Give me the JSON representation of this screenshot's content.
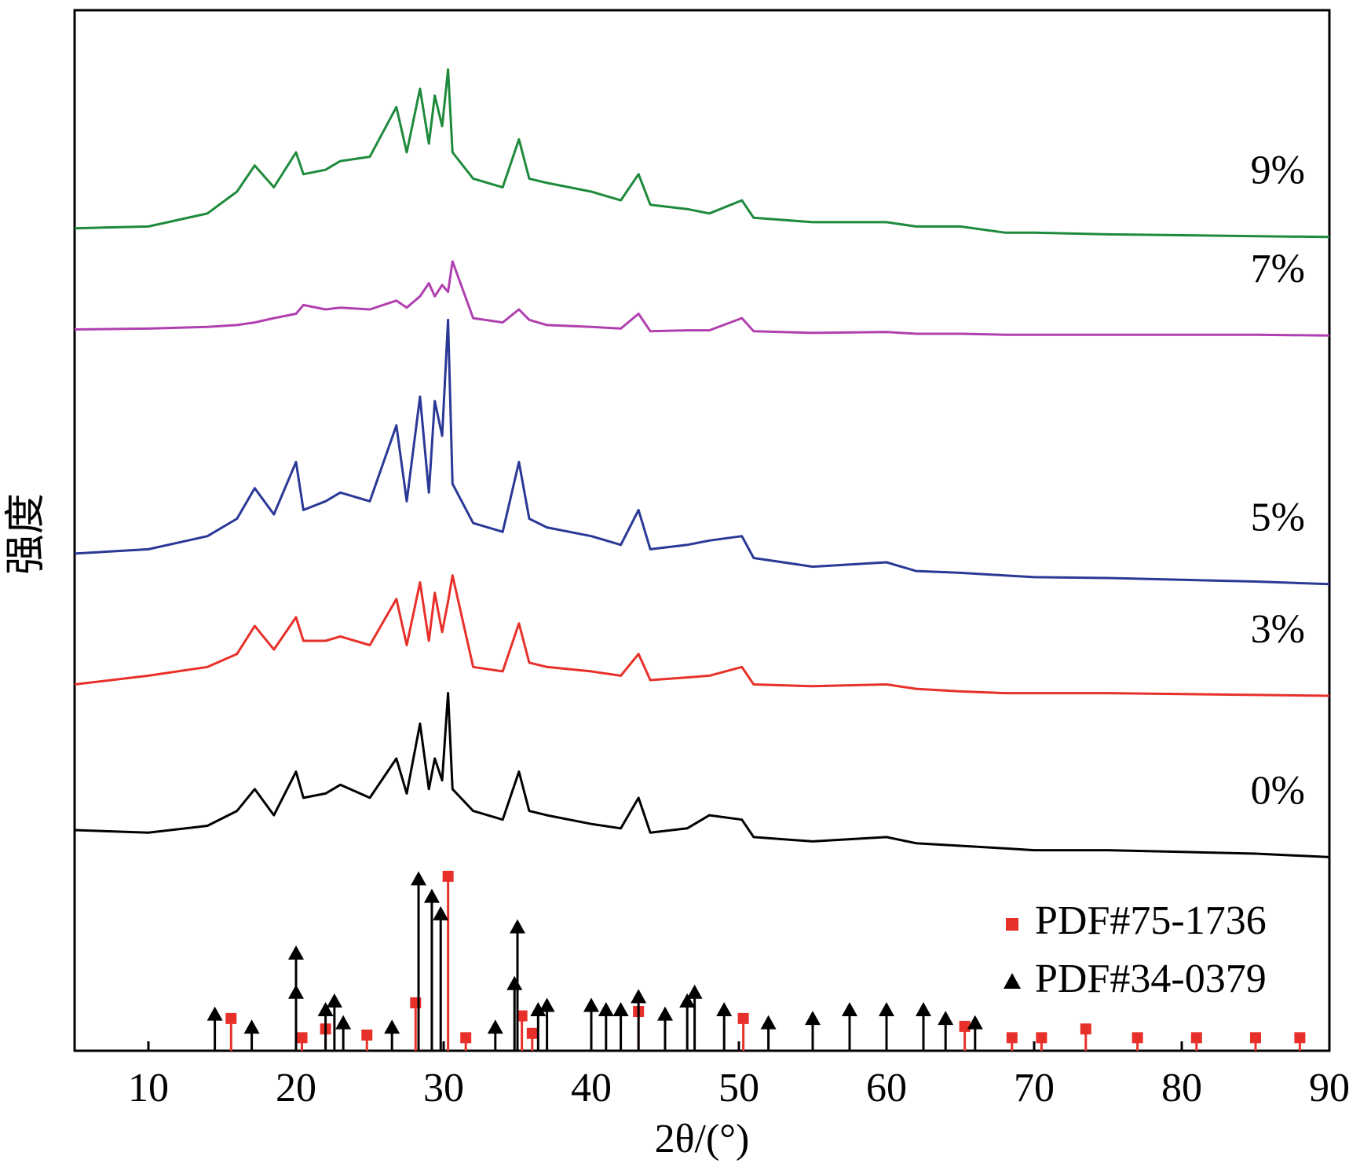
{
  "chart_data": {
    "type": "line",
    "x_label": "2θ/(°)",
    "y_label": "强度",
    "xlim": [
      5,
      90
    ],
    "xticks": [
      10,
      20,
      30,
      40,
      50,
      60,
      70,
      80,
      90
    ],
    "ylim": [
      0,
      1193
    ],
    "x": [
      5,
      10,
      14,
      16,
      17.2,
      18.5,
      20,
      20.5,
      22,
      23,
      25,
      26.8,
      27.5,
      28.4,
      29,
      29.4,
      29.9,
      30.3,
      30.6,
      32,
      34,
      35.1,
      35.8,
      37,
      40,
      42,
      43.2,
      44,
      46.5,
      48,
      50.2,
      51,
      55,
      60,
      62,
      65,
      68,
      70,
      75,
      80,
      85,
      90
    ],
    "series": [
      {
        "name": "9%",
        "color": "#1e8a3c",
        "values": [
          943,
          945,
          960,
          985,
          1015,
          990,
          1030,
          1005,
          1010,
          1020,
          1025,
          1082,
          1030,
          1103,
          1040,
          1095,
          1060,
          1125,
          1030,
          1000,
          990,
          1045,
          1000,
          995,
          985,
          975,
          1005,
          970,
          965,
          960,
          975,
          955,
          950,
          950,
          945,
          945,
          938,
          938,
          936,
          935,
          934,
          933
        ]
      },
      {
        "name": "7%",
        "color": "#b040b0",
        "values": [
          827,
          828,
          830,
          832,
          835,
          840,
          845,
          855,
          850,
          852,
          850,
          860,
          852,
          865,
          880,
          865,
          878,
          870,
          905,
          840,
          835,
          850,
          838,
          832,
          830,
          828,
          845,
          825,
          826,
          826,
          840,
          825,
          823,
          824,
          822,
          822,
          821,
          821,
          821,
          821,
          821,
          820
        ]
      },
      {
        "name": "5%",
        "color": "#2a3896",
        "values": [
          570,
          575,
          590,
          610,
          645,
          615,
          675,
          620,
          630,
          640,
          630,
          717,
          630,
          750,
          640,
          745,
          705,
          838,
          650,
          605,
          595,
          675,
          610,
          600,
          590,
          580,
          620,
          575,
          580,
          585,
          590,
          565,
          555,
          560,
          550,
          548,
          545,
          543,
          542,
          540,
          538,
          535
        ]
      },
      {
        "name": "3%",
        "color": "#e8302a",
        "values": [
          420,
          430,
          440,
          455,
          487,
          460,
          497,
          470,
          470,
          475,
          465,
          518,
          465,
          537,
          470,
          525,
          480,
          515,
          545,
          440,
          435,
          490,
          445,
          440,
          435,
          430,
          455,
          425,
          428,
          430,
          440,
          420,
          418,
          420,
          415,
          412,
          410,
          410,
          410,
          409,
          408,
          407
        ]
      },
      {
        "name": "0%",
        "color": "#000000",
        "values": [
          253,
          250,
          258,
          275,
          300,
          270,
          320,
          290,
          295,
          305,
          290,
          335,
          295,
          375,
          300,
          335,
          310,
          410,
          300,
          275,
          265,
          320,
          275,
          270,
          260,
          255,
          290,
          250,
          255,
          270,
          265,
          245,
          240,
          245,
          238,
          235,
          232,
          230,
          230,
          228,
          226,
          222
        ]
      }
    ],
    "references": [
      {
        "name": "PDF#75-1736",
        "color": "#e8302a",
        "marker": "square",
        "x": [
          15.6,
          20.4,
          22,
          24.8,
          28.1,
          30.3,
          31.5,
          35.3,
          36,
          43.2,
          50.3,
          65.3,
          68.5,
          70.5,
          73.5,
          77,
          81,
          85,
          88
        ],
        "values": [
          37,
          15,
          25,
          18,
          55,
          200,
          15,
          40,
          20,
          45,
          37,
          28,
          15,
          15,
          25,
          15,
          15,
          15,
          15
        ]
      },
      {
        "name": "PDF#34-0379",
        "color": "#000000",
        "marker": "triangle",
        "x": [
          14.5,
          17,
          20,
          20,
          22,
          22.6,
          23.2,
          26.5,
          28.3,
          29.2,
          29.8,
          33.5,
          34.8,
          35,
          36.4,
          37,
          40,
          41,
          42,
          43.2,
          45,
          46.5,
          47,
          49,
          52,
          55,
          57.5,
          60,
          62.5,
          64,
          66
        ],
        "values": [
          40,
          25,
          110,
          65,
          45,
          55,
          30,
          25,
          195,
          175,
          155,
          25,
          75,
          140,
          45,
          50,
          50,
          45,
          45,
          60,
          40,
          55,
          65,
          45,
          30,
          35,
          45,
          45,
          45,
          35,
          30
        ]
      }
    ],
    "legend": "bottom-right"
  }
}
